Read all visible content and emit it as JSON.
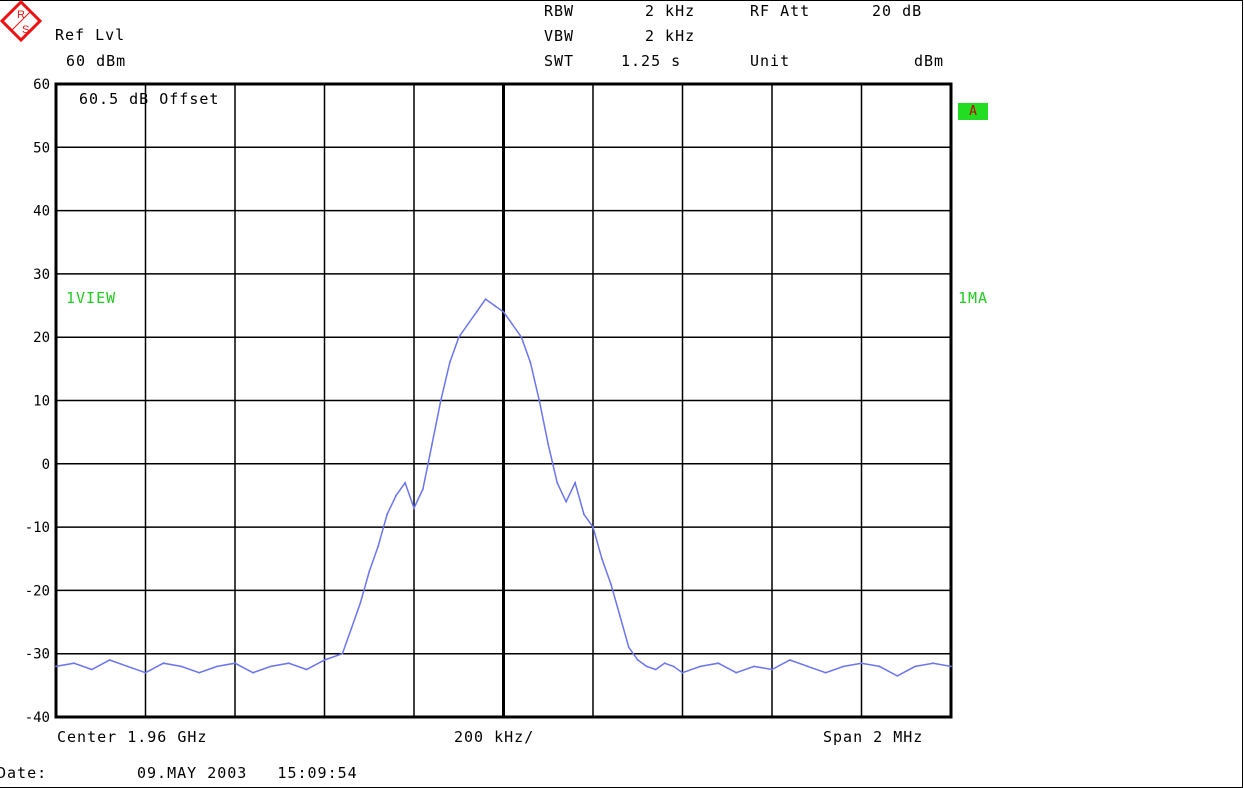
{
  "header": {
    "ref_lvl_label": "Ref Lvl",
    "ref_lvl_value": "60 dBm",
    "rbw_label": "RBW",
    "rbw_value": "2 kHz",
    "vbw_label": "VBW",
    "vbw_value": "2 kHz",
    "swt_label": "SWT",
    "swt_value": "1.25 s",
    "rfatt_label": "RF Att",
    "rfatt_value": "20 dB",
    "unit_label": "Unit",
    "unit_value": "dBm"
  },
  "annotations": {
    "offset": "60.5 dB Offset",
    "trace_mode_left": "1VIEW",
    "trace_mode_right": "1MA",
    "trace_badge": "A"
  },
  "footer": {
    "center": "Center 1.96 GHz",
    "per_div": "200 kHz/",
    "span": "Span 2 MHz",
    "date_label": "Date:",
    "date_value": "09.MAY 2003   15:09:54"
  },
  "colors": {
    "trace": "#6b75ef",
    "grid": "#000000",
    "label_green": "#22cc22",
    "badge_bg": "#22dd22",
    "logo": "#ee1111"
  },
  "chart_data": {
    "type": "line",
    "title": "",
    "xlabel": "",
    "ylabel": "",
    "ylim": [
      -40,
      60
    ],
    "xlim": [
      -1000,
      1000
    ],
    "x_unit": "kHz offset from 1.96 GHz",
    "y_ticks": [
      "60",
      "50",
      "40",
      "30",
      "20",
      "10",
      "0",
      "-10",
      "-20",
      "-30",
      "-40"
    ],
    "grid": true,
    "series": [
      {
        "name": "",
        "x": [
          -1000,
          -960,
          -920,
          -880,
          -840,
          -800,
          -760,
          -720,
          -680,
          -640,
          -600,
          -560,
          -520,
          -480,
          -440,
          -400,
          -360,
          -340,
          -320,
          -300,
          -280,
          -260,
          -240,
          -220,
          -200,
          -180,
          -160,
          -140,
          -120,
          -100,
          -80,
          -60,
          -40,
          -20,
          0,
          20,
          40,
          60,
          80,
          100,
          120,
          140,
          160,
          180,
          200,
          220,
          240,
          260,
          280,
          300,
          320,
          340,
          360,
          380,
          400,
          440,
          480,
          520,
          560,
          600,
          640,
          680,
          720,
          760,
          800,
          840,
          880,
          920,
          960,
          1000
        ],
        "values": [
          -32,
          -31.5,
          -32.5,
          -31,
          -32,
          -33,
          -31.5,
          -32,
          -33,
          -32,
          -31.5,
          -33,
          -32,
          -31.5,
          -32.5,
          -31,
          -30,
          -26,
          -22,
          -17,
          -13,
          -8,
          -5,
          -3,
          -7,
          -4,
          3,
          10,
          16,
          20,
          22,
          24,
          26,
          25,
          24,
          22,
          20,
          16,
          10,
          3,
          -3,
          -6,
          -3,
          -8,
          -10,
          -15,
          -19,
          -24,
          -29,
          -31,
          -32,
          -32.5,
          -31.5,
          -32,
          -33,
          -32,
          -31.5,
          -33,
          -32,
          -32.5,
          -31,
          -32,
          -33,
          -32,
          -31.5,
          -32,
          -33.5,
          -32,
          -31.5,
          -32
        ]
      }
    ]
  }
}
